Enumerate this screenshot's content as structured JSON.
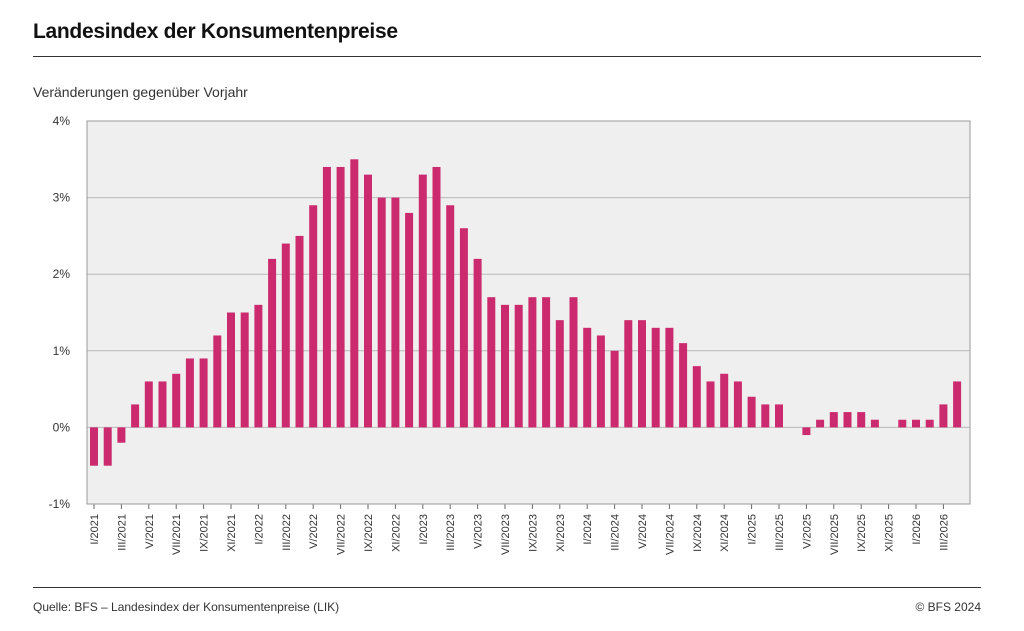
{
  "title": "Landesindex der Konsumentenpreise",
  "subtitle": "Veränderungen gegenüber Vorjahr",
  "source": "Quelle: BFS – Landesindex der Konsumentenpreise (LIK)",
  "copyright": "© BFS 2024",
  "colors": {
    "bar": "#cc2a6e",
    "plot_bg": "#efefef",
    "grid": "#b9b9b9",
    "frame": "#9a9a9a"
  },
  "chart_data": {
    "type": "bar",
    "title": "Landesindex der Konsumentenpreise",
    "subtitle": "Veränderungen gegenüber Vorjahr",
    "ylim": [
      -1,
      4
    ],
    "yticks": [
      -1,
      0,
      1,
      2,
      3,
      4
    ],
    "ytick_labels": [
      "-1%",
      "0%",
      "1%",
      "2%",
      "3%",
      "4%"
    ],
    "grid": true,
    "categories": [
      "I/2021",
      "II/2021",
      "III/2021",
      "IV/2021",
      "V/2021",
      "VI/2021",
      "VII/2021",
      "VIII/2021",
      "IX/2021",
      "X/2021",
      "XI/2021",
      "XII/2021",
      "I/2022",
      "II/2022",
      "III/2022",
      "IV/2022",
      "V/2022",
      "VI/2022",
      "VII/2022",
      "VIII/2022",
      "IX/2022",
      "X/2022",
      "XI/2022",
      "XII/2022",
      "I/2023",
      "II/2023",
      "III/2023",
      "IV/2023",
      "V/2023",
      "VI/2023",
      "VII/2023",
      "VIII/2023",
      "IX/2023",
      "X/2023",
      "XI/2023",
      "XII/2023",
      "I/2024",
      "II/2024",
      "III/2024",
      "IV/2024",
      "V/2024",
      "VI/2024",
      "VII/2024",
      "VIII/2024",
      "IX/2024",
      "X/2024",
      "XI/2024",
      "XII/2024",
      "I/2025",
      "II/2025",
      "III/2025",
      "IV/2025",
      "V/2025",
      "VI/2025",
      "VII/2025",
      "VIII/2025",
      "IX/2025",
      "X/2025",
      "XI/2025",
      "XII/2025",
      "I/2026",
      "II/2026",
      "III/2026",
      "IV/2026"
    ],
    "values": [
      -0.5,
      -0.5,
      -0.2,
      0.3,
      0.6,
      0.6,
      0.7,
      0.9,
      0.9,
      1.2,
      1.5,
      1.5,
      1.6,
      2.2,
      2.4,
      2.5,
      2.9,
      3.4,
      3.4,
      3.5,
      3.3,
      3.0,
      3.0,
      2.8,
      3.3,
      3.4,
      2.9,
      2.6,
      2.2,
      1.7,
      1.6,
      1.6,
      1.7,
      1.7,
      1.4,
      1.7,
      1.3,
      1.2,
      1.0,
      1.4,
      1.4,
      1.3,
      1.3,
      1.1,
      0.8,
      0.6,
      0.7,
      0.6,
      0.4,
      0.3,
      0.3,
      0.0,
      -0.1,
      0.1,
      0.2,
      0.2,
      0.2,
      0.1,
      0.0,
      0.1,
      0.1,
      0.1,
      0.3,
      0.6
    ],
    "xtick_labels": [
      "I/2021",
      "III/2021",
      "V/2021",
      "VII/2021",
      "IX/2021",
      "XI/2021",
      "I/2022",
      "III/2022",
      "V/2022",
      "VII/2022",
      "IX/2022",
      "XI/2022",
      "I/2023",
      "III/2023",
      "V/2023",
      "VII/2023",
      "IX/2023",
      "XI/2023",
      "I/2024",
      "III/2024",
      "V/2024",
      "VII/2024",
      "IX/2024",
      "XI/2024",
      "I/2025",
      "III/2025",
      "V/2025",
      "VII/2025",
      "IX/2025",
      "XI/2025",
      "I/2026",
      "III/2026"
    ]
  }
}
